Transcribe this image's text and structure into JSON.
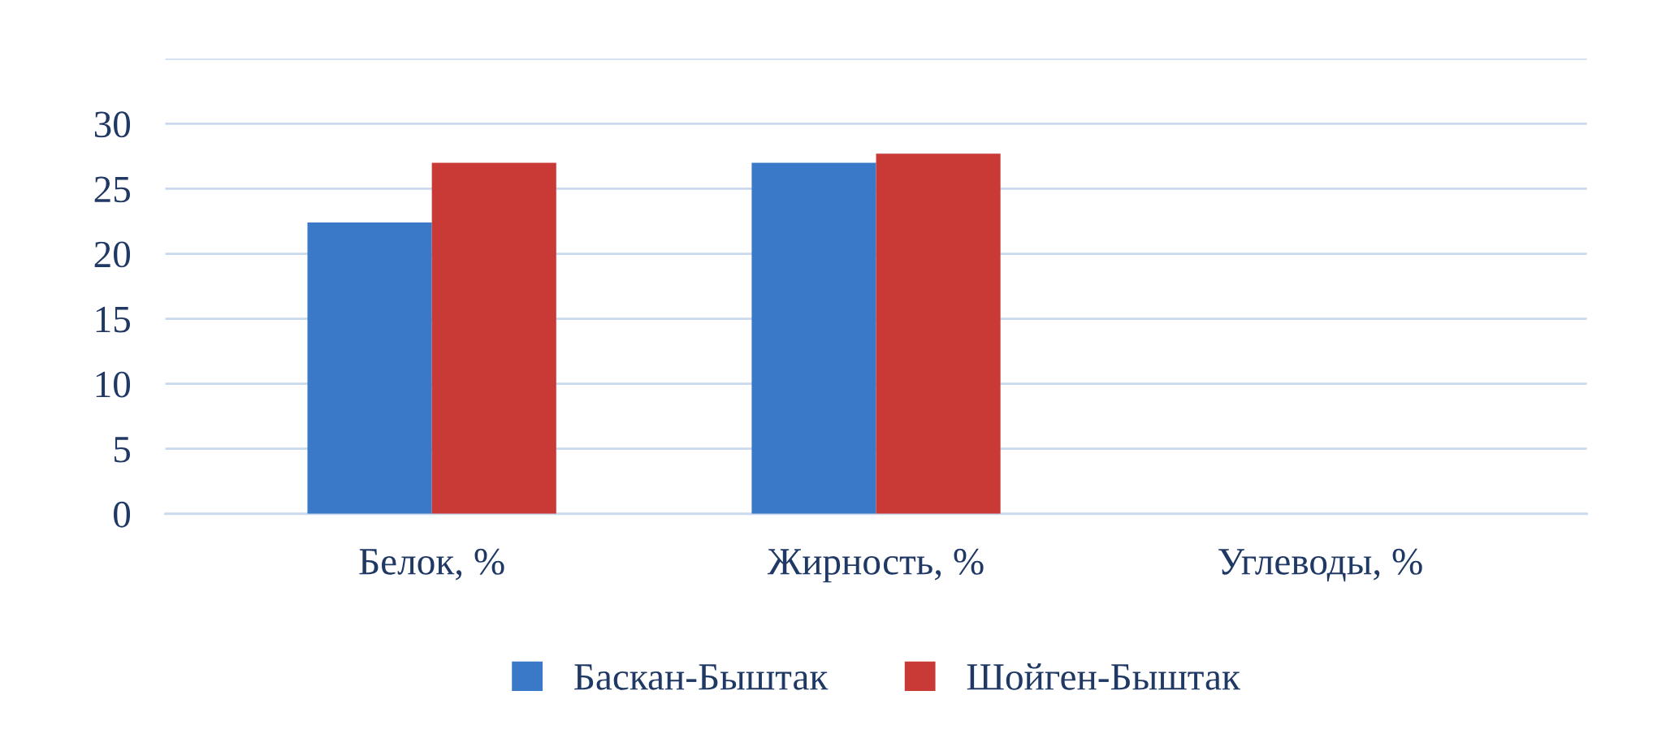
{
  "chart_data": {
    "type": "bar",
    "categories": [
      "Белок, %",
      "Жирность, %",
      "Углеводы, %"
    ],
    "series": [
      {
        "name": "Баскан-Быштак",
        "color": "#3a78c8",
        "values": [
          22.4,
          27,
          0
        ]
      },
      {
        "name": "Шойген-Быштак",
        "color": "#c93a36",
        "values": [
          27,
          27.7,
          0
        ]
      }
    ],
    "ylim": [
      0,
      35
    ],
    "yticks": [
      0,
      5,
      10,
      15,
      20,
      25,
      30,
      {
        "value": 35,
        "label": null
      }
    ],
    "grid": "y",
    "legend": "bottom"
  }
}
